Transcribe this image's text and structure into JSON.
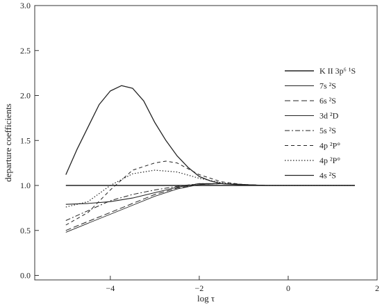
{
  "chart_data": {
    "type": "line",
    "xlabel": "log τ",
    "ylabel": "departure coefficients",
    "xlim": [
      -5.7,
      2.0
    ],
    "ylim": [
      -0.05,
      3.0
    ],
    "x_ticks": [
      {
        "value": -4,
        "label": "−4"
      },
      {
        "value": -2,
        "label": "−2"
      },
      {
        "value": 0,
        "label": "0"
      },
      {
        "value": 2,
        "label": "2"
      }
    ],
    "y_ticks": [
      {
        "value": 0.0,
        "label": "0.0"
      },
      {
        "value": 0.5,
        "label": "0.5"
      },
      {
        "value": 1.0,
        "label": "1.0"
      },
      {
        "value": 1.5,
        "label": "1.5"
      },
      {
        "value": 2.0,
        "label": "2.0"
      },
      {
        "value": 2.5,
        "label": "2.5"
      },
      {
        "value": 3.0,
        "label": "3.0"
      }
    ],
    "legend_placement": "right",
    "series": [
      {
        "name": "K II 3p⁶ ¹S",
        "style": "solid-thick",
        "x": [
          -5.0,
          1.5
        ],
        "y": [
          1.0,
          1.0
        ]
      },
      {
        "name": "7s ²S",
        "style": "solid",
        "x": [
          -5.0,
          -4.5,
          -4.0,
          -3.5,
          -3.0,
          -2.5,
          -2.0,
          -1.5,
          -1.0,
          -0.5,
          0.0,
          0.5,
          1.0,
          1.5
        ],
        "y": [
          0.79,
          0.8,
          0.82,
          0.86,
          0.92,
          0.98,
          1.02,
          1.02,
          1.01,
          1.0,
          1.0,
          1.0,
          1.0,
          1.0
        ]
      },
      {
        "name": "6s ²S",
        "style": "dashed",
        "x": [
          -5.0,
          -4.5,
          -4.0,
          -3.5,
          -3.0,
          -2.5,
          -2.0,
          -1.5,
          -1.0,
          -0.5,
          0.0,
          0.5,
          1.0,
          1.5
        ],
        "y": [
          0.5,
          0.6,
          0.7,
          0.8,
          0.9,
          0.97,
          1.01,
          1.02,
          1.01,
          1.0,
          1.0,
          1.0,
          1.0,
          1.0
        ]
      },
      {
        "name": "3d ²D",
        "style": "solid-thin",
        "x": [
          -5.0,
          -4.5,
          -4.0,
          -3.5,
          -3.0,
          -2.5,
          -2.0,
          -1.5,
          -1.0,
          -0.5,
          0.0,
          0.5,
          1.0,
          1.5
        ],
        "y": [
          0.48,
          0.58,
          0.68,
          0.78,
          0.88,
          0.96,
          1.01,
          1.02,
          1.01,
          1.0,
          1.0,
          1.0,
          1.0,
          1.0
        ]
      },
      {
        "name": "5s ²S",
        "style": "dash-dot",
        "x": [
          -5.0,
          -4.5,
          -4.0,
          -3.5,
          -3.0,
          -2.5,
          -2.0,
          -1.5,
          -1.0,
          -0.5,
          0.0,
          0.5,
          1.0,
          1.5
        ],
        "y": [
          0.61,
          0.72,
          0.83,
          0.9,
          0.95,
          0.99,
          1.02,
          1.02,
          1.01,
          1.0,
          1.0,
          1.0,
          1.0,
          1.0
        ]
      },
      {
        "name": "4p ²P°",
        "style": "dashed-long",
        "x": [
          -5.0,
          -4.5,
          -4.0,
          -3.5,
          -3.0,
          -2.75,
          -2.5,
          -2.0,
          -1.5,
          -1.0,
          -0.5,
          0.0,
          0.5,
          1.0,
          1.5
        ],
        "y": [
          0.56,
          0.7,
          0.95,
          1.17,
          1.25,
          1.27,
          1.25,
          1.12,
          1.04,
          1.01,
          1.0,
          1.0,
          1.0,
          1.0,
          1.0
        ]
      },
      {
        "name": "4p ²P°",
        "style": "dotted",
        "x": [
          -5.0,
          -4.5,
          -4.0,
          -3.5,
          -3.0,
          -2.5,
          -2.0,
          -1.5,
          -1.0,
          -0.5,
          0.0,
          0.5,
          1.0,
          1.5
        ],
        "y": [
          0.76,
          0.82,
          1.0,
          1.13,
          1.17,
          1.15,
          1.08,
          1.03,
          1.01,
          1.0,
          1.0,
          1.0,
          1.0,
          1.0
        ]
      },
      {
        "name": "4s ²S",
        "style": "solid-medium",
        "x": [
          -5.0,
          -4.75,
          -4.5,
          -4.25,
          -4.0,
          -3.75,
          -3.5,
          -3.25,
          -3.0,
          -2.75,
          -2.5,
          -2.25,
          -2.0,
          -1.75,
          -1.5,
          -1.0,
          -0.5,
          0.0,
          0.5,
          1.0,
          1.5
        ],
        "y": [
          1.12,
          1.4,
          1.65,
          1.9,
          2.05,
          2.11,
          2.08,
          1.94,
          1.7,
          1.5,
          1.33,
          1.2,
          1.1,
          1.05,
          1.02,
          1.005,
          1.0,
          1.0,
          1.0,
          1.0,
          1.0
        ]
      }
    ]
  }
}
